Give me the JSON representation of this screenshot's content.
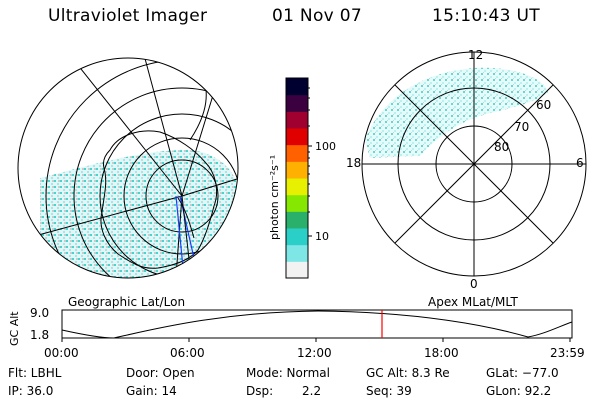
{
  "header": {
    "instrument": "Ultraviolet Imager",
    "date": "01 Nov 07",
    "time": "15:10:43 UT"
  },
  "colorbar": {
    "unit_label": "photon cm⁻²s⁻¹",
    "tick_labels": [
      "100",
      "10"
    ],
    "scale": "log",
    "colors": [
      "#f2f2f2",
      "#7fe6e6",
      "#2ad0c8",
      "#2ab06a",
      "#86e800",
      "#e6f000",
      "#ffb000",
      "#ff6000",
      "#e00000",
      "#a00030",
      "#3a0040",
      "#000030"
    ]
  },
  "left_map": {
    "projection_label": "Geographic Lat/Lon",
    "coverage_color": "#3cd2cc"
  },
  "right_map": {
    "projection_label": "Apex MLat/MLT",
    "mlt_labels": {
      "top": "12",
      "bottom": "0",
      "left": "18",
      "right": "6"
    },
    "lat_labels": [
      "60",
      "70",
      "80"
    ]
  },
  "orbit_plot": {
    "ylabel": "GC Alt",
    "yticks": [
      "9.0",
      "1.8"
    ],
    "xticks": [
      "00:00",
      "06:00",
      "12:00",
      "18:00",
      "23:59"
    ],
    "current_time_marker": "15:10",
    "marker_color": "#ff0000"
  },
  "footer": {
    "flt": "Flt: LBHL",
    "door": "Door: Open",
    "mode": "Mode: Normal",
    "gc_alt": "GC Alt: 8.3 Re",
    "glat": "GLat: −77.0",
    "ip": "IP: 36.0",
    "gain": "Gain: 14",
    "dsp_label": "Dsp:",
    "dsp_value": "2.2",
    "seq": "Seq: 39",
    "glon": "GLon:  92.2"
  }
}
